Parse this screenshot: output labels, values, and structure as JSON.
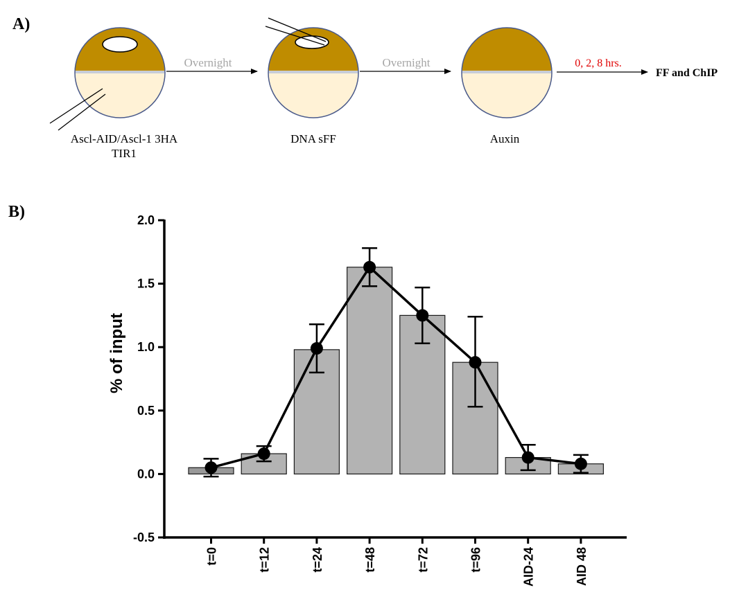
{
  "panel_a": {
    "label": "A)",
    "step1_label_line1": "Ascl-AID/Ascl-1 3HA",
    "step1_label_line2": "TIR1",
    "arrow1_label": "Overnight",
    "step2_label": "DNA sFF",
    "arrow2_label": "Overnight",
    "step3_label": "Auxin",
    "arrow3_label": "0, 2, 8 hrs.",
    "final_label": "FF and ChIP",
    "colors": {
      "embryo_top": "#bf8c00",
      "embryo_bottom": "#fff2d6",
      "outline": "#4a5a8a",
      "arrow3_label": "#e00000"
    }
  },
  "panel_b": {
    "label": "B)"
  },
  "chart_data": {
    "type": "bar",
    "categories": [
      "t=0",
      "t=12",
      "t=24",
      "t=48",
      "t=72",
      "t=96",
      "AID-24",
      "AID 48"
    ],
    "bar_values": [
      0.05,
      0.16,
      0.98,
      1.63,
      1.25,
      0.88,
      0.13,
      0.08
    ],
    "line_values": [
      0.05,
      0.16,
      0.99,
      1.63,
      1.25,
      0.88,
      0.13,
      0.08
    ],
    "error_low": [
      -0.02,
      0.1,
      0.8,
      1.48,
      1.03,
      0.53,
      0.03,
      0.01
    ],
    "error_high": [
      0.12,
      0.22,
      1.18,
      1.78,
      1.47,
      1.24,
      0.23,
      0.15
    ],
    "ylabel": "% of input",
    "xlabel": "",
    "ylim": [
      -0.5,
      2.0
    ],
    "yticks": [
      "-0.5",
      "0.0",
      "0.5",
      "1.0",
      "1.5",
      "2.0"
    ],
    "ytick_values": [
      -0.5,
      0.0,
      0.5,
      1.0,
      1.5,
      2.0
    ],
    "bar_colors": [
      "#999999",
      "#b3b3b3",
      "#b3b3b3",
      "#b3b3b3",
      "#b3b3b3",
      "#b3b3b3",
      "#b3b3b3",
      "#b3b3b3"
    ],
    "line_color": "#000000",
    "grid": false,
    "legend": "none"
  }
}
